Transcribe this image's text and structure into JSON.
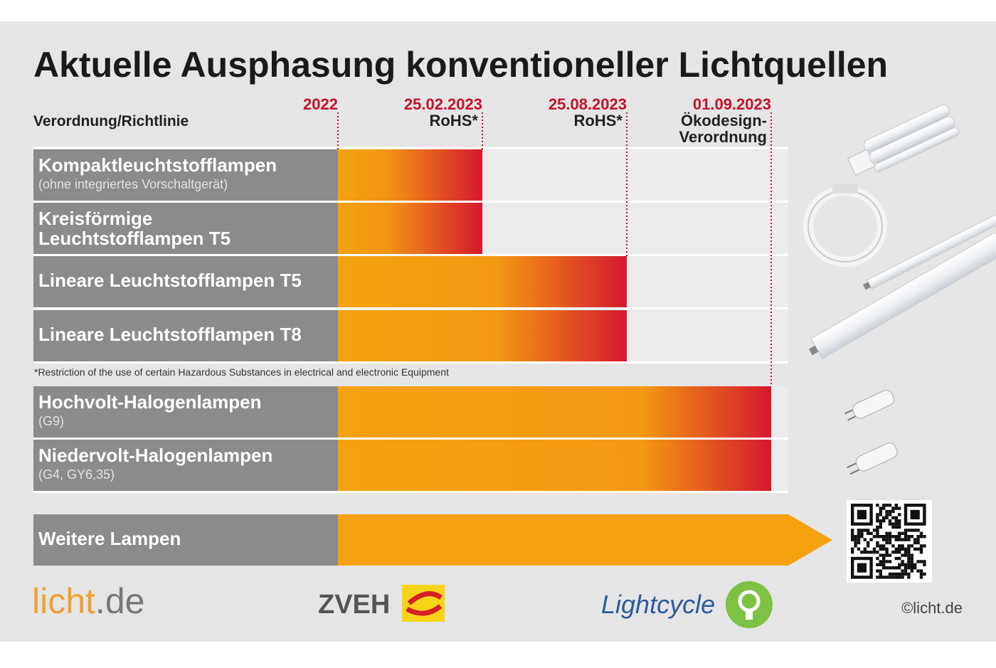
{
  "title": "Aktuelle Ausphasung konventioneller Lichtquellen",
  "header_label": "Verordnung/Richtlinie",
  "milestones": [
    {
      "date": "2022",
      "lines": []
    },
    {
      "date": "25.02.2023",
      "lines": [
        "RoHS*"
      ]
    },
    {
      "date": "25.08.2023",
      "lines": [
        "RoHS*"
      ]
    },
    {
      "date": "01.09.2023",
      "lines": [
        "Ökodesign-",
        "Verordnung"
      ]
    }
  ],
  "rows": [
    {
      "lines": [
        "Kompaktleuchtstofflampen"
      ],
      "note": "(ohne integriertes Vorschaltgerät)"
    },
    {
      "lines": [
        "Kreisförmige",
        "Leuchtstofflampen T5"
      ],
      "note": null
    },
    {
      "lines": [
        "Lineare Leuchtstofflampen T5"
      ],
      "note": null
    },
    {
      "lines": [
        "Lineare Leuchtstofflampen T8"
      ],
      "note": null
    },
    {
      "lines": [
        "Hochvolt-Halogenlampen"
      ],
      "note": "(G9)"
    },
    {
      "lines": [
        "Niedervolt-Halogenlampen"
      ],
      "note": "(G4, GY6,35)"
    },
    {
      "lines": [
        "Weitere Lampen"
      ],
      "note": null
    }
  ],
  "footnote": "*Restriction of the use of certain Hazardous Substances in electrical and electronic Equipment",
  "logos": {
    "licht_main": "licht",
    "licht_tld": ".de",
    "zveh": "ZVEH",
    "lightcycle": "Lightcycle"
  },
  "copyright": "©licht.de"
}
